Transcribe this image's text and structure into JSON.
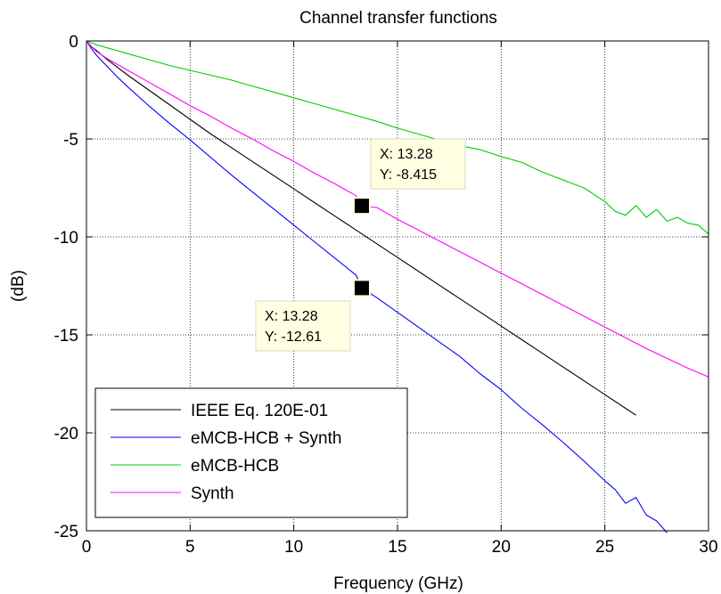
{
  "chart_data": {
    "type": "line",
    "title": "Channel transfer functions",
    "xlabel": "Frequency (GHz)",
    "ylabel": "(dB)",
    "xlim": [
      0,
      30
    ],
    "ylim": [
      -25,
      0
    ],
    "x_ticks": [
      0,
      5,
      10,
      15,
      20,
      25,
      30
    ],
    "y_ticks": [
      0,
      -5,
      -10,
      -15,
      -20,
      -25
    ],
    "x_tick_labels": [
      "0",
      "5",
      "10",
      "15",
      "20",
      "25",
      "30"
    ],
    "y_tick_labels": [
      "0",
      "-5",
      "-10",
      "-15",
      "-20",
      "-25"
    ],
    "grid": true,
    "legend_position": "bottom-left",
    "series": [
      {
        "name": "IEEE Eq. 120E-01",
        "color": "#000000",
        "x": [
          0,
          0.25,
          0.5,
          1,
          1.5,
          2,
          3,
          4,
          5,
          6,
          7,
          8,
          9,
          10,
          11,
          12,
          13,
          14,
          15,
          16,
          17,
          18,
          19,
          20,
          21,
          22,
          23,
          24,
          25,
          26,
          26.5
        ],
        "y": [
          0,
          -0.3,
          -0.5,
          -0.95,
          -1.35,
          -1.75,
          -2.5,
          -3.25,
          -4.0,
          -4.75,
          -5.45,
          -6.15,
          -6.85,
          -7.55,
          -8.25,
          -8.95,
          -9.65,
          -10.35,
          -11.05,
          -11.75,
          -12.45,
          -13.15,
          -13.85,
          -14.55,
          -15.25,
          -15.95,
          -16.65,
          -17.35,
          -18.05,
          -18.75,
          -19.1
        ]
      },
      {
        "name": "eMCB-HCB + Synth",
        "color": "#0000ff",
        "x": [
          0,
          0.25,
          0.5,
          1,
          1.5,
          2,
          3,
          4,
          5,
          6,
          7,
          8,
          9,
          10,
          11,
          12,
          13,
          13.28,
          14,
          15,
          16,
          17,
          18,
          19,
          20,
          21,
          22,
          23,
          24,
          25,
          25.5,
          26,
          26.5,
          27,
          27.5,
          28
        ],
        "y": [
          0,
          -0.4,
          -0.75,
          -1.3,
          -1.85,
          -2.35,
          -3.3,
          -4.2,
          -5.05,
          -5.95,
          -6.85,
          -7.7,
          -8.55,
          -9.4,
          -10.25,
          -11.1,
          -11.95,
          -12.61,
          -13.1,
          -13.85,
          -14.6,
          -15.35,
          -16.1,
          -17.0,
          -17.8,
          -18.75,
          -19.6,
          -20.5,
          -21.45,
          -22.45,
          -22.9,
          -23.6,
          -23.3,
          -24.2,
          -24.5,
          -25.1
        ]
      },
      {
        "name": "eMCB-HCB",
        "color": "#00cc00",
        "x": [
          0,
          0.5,
          1,
          2,
          3,
          4,
          5,
          6,
          7,
          8,
          9,
          10,
          11,
          12,
          13,
          14,
          15,
          16,
          17,
          18,
          19,
          20,
          21,
          22,
          23,
          24,
          25,
          25.5,
          26,
          26.5,
          27,
          27.5,
          28,
          28.5,
          29,
          29.5,
          30
        ],
        "y": [
          0,
          -0.2,
          -0.35,
          -0.65,
          -0.95,
          -1.25,
          -1.5,
          -1.75,
          -2.0,
          -2.3,
          -2.6,
          -2.9,
          -3.2,
          -3.5,
          -3.8,
          -4.1,
          -4.45,
          -4.75,
          -5.05,
          -5.35,
          -5.55,
          -5.9,
          -6.2,
          -6.7,
          -7.1,
          -7.5,
          -8.2,
          -8.7,
          -8.9,
          -8.4,
          -9.0,
          -8.6,
          -9.2,
          -9.0,
          -9.3,
          -9.4,
          -9.85
        ]
      },
      {
        "name": "Synth",
        "color": "#ff00ff",
        "x": [
          0,
          0.25,
          0.5,
          1,
          2,
          3,
          4,
          5,
          6,
          7,
          8,
          9,
          10,
          11,
          12,
          13,
          13.28,
          14,
          15,
          16,
          17,
          18,
          19,
          20,
          21,
          22,
          23,
          24,
          25,
          26,
          27,
          28,
          29,
          30
        ],
        "y": [
          0,
          -0.3,
          -0.55,
          -0.9,
          -1.5,
          -2.1,
          -2.7,
          -3.3,
          -3.85,
          -4.45,
          -5.0,
          -5.6,
          -6.15,
          -6.75,
          -7.3,
          -7.9,
          -8.415,
          -8.5,
          -9.1,
          -9.65,
          -10.2,
          -10.75,
          -11.3,
          -11.85,
          -12.4,
          -12.95,
          -13.5,
          -14.05,
          -14.6,
          -15.15,
          -15.7,
          -16.2,
          -16.7,
          -17.15
        ]
      }
    ],
    "datatips": [
      {
        "x": 13.28,
        "y": -8.415,
        "x_text": "X: 13.28",
        "y_text": "Y: -8.415"
      },
      {
        "x": 13.28,
        "y": -12.61,
        "x_text": "X: 13.28",
        "y_text": "Y: -12.61"
      }
    ]
  }
}
